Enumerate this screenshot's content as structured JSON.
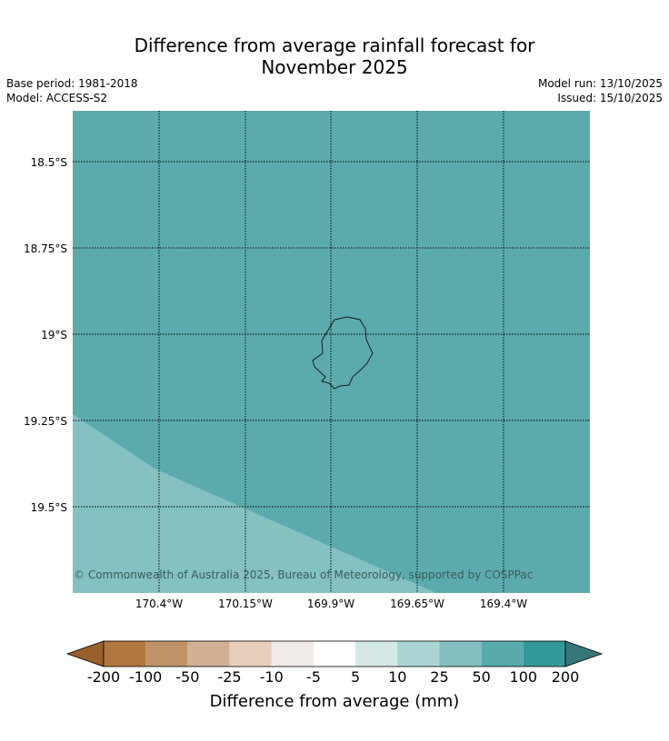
{
  "title_line1": "Difference from average rainfall forecast for",
  "title_line2": "November 2025",
  "base_period": "Base period: 1981-2018",
  "model": "Model: ACCESS-S2",
  "model_run": "Model run: 13/10/2025",
  "issued": "Issued: 15/10/2025",
  "map": {
    "lat_labels": [
      "18.5°S",
      "18.75°S",
      "19°S",
      "19.25°S",
      "19.5°S"
    ],
    "lon_labels": [
      "170.4°W",
      "170.15°W",
      "169.9°W",
      "169.65°W",
      "169.4°W"
    ],
    "copyright": "© Commonwealth of Australia 2025, Bureau of Meteorology, supported by COSPPac",
    "region_colors": {
      "main": "#5cabac",
      "lower_band": "#84c1c0",
      "coastline": "#1a1a1a",
      "grid": "#000000"
    }
  },
  "colorbar": {
    "title": "Difference from average (mm)",
    "ticks": [
      "-200",
      "-100",
      "-50",
      "-25",
      "-10",
      "-5",
      "5",
      "10",
      "25",
      "50",
      "100",
      "200"
    ],
    "under_color": "#99602d",
    "over_color": "#37767a",
    "colors": [
      "#b0773f",
      "#c09268",
      "#d3b093",
      "#e6cfbd",
      "#f1ebe7",
      "#ffffff",
      "#d4e8e6",
      "#aad5d4",
      "#82bfbe",
      "#58aaab",
      "#339998"
    ]
  }
}
